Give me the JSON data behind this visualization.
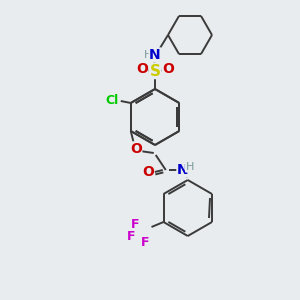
{
  "bg_color": "#e8ecee",
  "bond_color": "#3a3a3a",
  "bond_width": 1.4,
  "atom_colors": {
    "N": "#0000cc",
    "O": "#cc0000",
    "S": "#cccc00",
    "Cl": "#00cc00",
    "F": "#cc00cc",
    "C": "#3a3a3a",
    "H": "#7a9a9a"
  },
  "font_size": 9,
  "fig_size": [
    3.0,
    3.0
  ],
  "dpi": 100
}
